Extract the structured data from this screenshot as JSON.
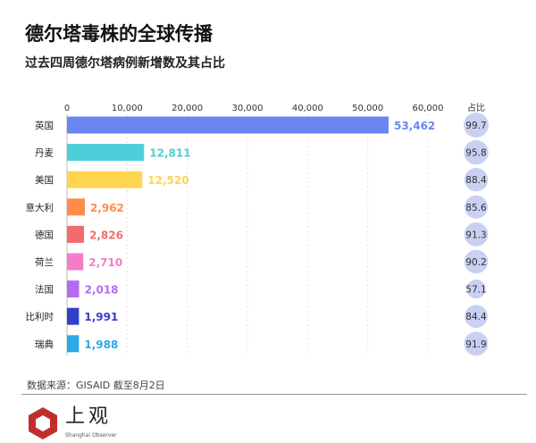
{
  "header": {
    "title": "德尔塔毒株的全球传播",
    "subtitle": "过去四周德尔塔病例新增数及其占比"
  },
  "footer": {
    "source": "数据来源：GISAID 截至8月2日",
    "brand": "上观",
    "brand_en": "Shanghai Observer"
  },
  "chart_data": {
    "type": "bar",
    "orientation": "horizontal",
    "title": "德尔塔毒株的全球传播",
    "subtitle": "过去四周德尔塔病例新增数及其占比",
    "categories": [
      "英国",
      "丹麦",
      "美国",
      "意大利",
      "德国",
      "荷兰",
      "法国",
      "比利时",
      "瑞典"
    ],
    "values": [
      53462,
      12811,
      12520,
      2962,
      2826,
      2710,
      2018,
      1991,
      1988
    ],
    "value_labels": [
      "53,462",
      "12,811",
      "12,520",
      "2,962",
      "2,826",
      "2,710",
      "2,018",
      "1,991",
      "1,988"
    ],
    "share_header": "占比",
    "share": [
      99.7,
      95.8,
      88.4,
      85.6,
      91.3,
      90.2,
      57.1,
      84.4,
      91.9
    ],
    "share_labels": [
      "99.7",
      "95.8",
      "88.4",
      "85.6",
      "91.3",
      "90.2",
      "57.1",
      "84.4",
      "91.9"
    ],
    "colors": [
      "#6B86F0",
      "#4DCFD9",
      "#FFD54F",
      "#FF8C4A",
      "#F46B6B",
      "#F77BC9",
      "#B36BF2",
      "#3240C8",
      "#2BA9E8"
    ],
    "xlim": [
      0,
      60000
    ],
    "xticks": [
      "0",
      "10,000",
      "20,000",
      "30,000",
      "40,000",
      "50,000",
      "60,000"
    ],
    "xtick_values": [
      0,
      10000,
      20000,
      30000,
      40000,
      50000,
      60000
    ],
    "grid": true
  }
}
